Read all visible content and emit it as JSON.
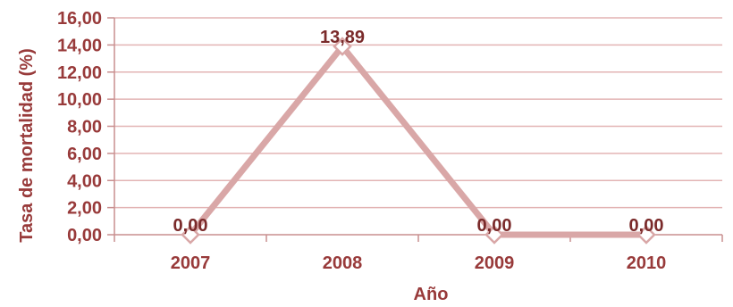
{
  "chart_data": {
    "type": "line",
    "categories": [
      "2007",
      "2008",
      "2009",
      "2010"
    ],
    "series": [
      {
        "values": [
          0.0,
          13.89,
          0.0,
          0.0
        ]
      }
    ],
    "data_labels": [
      "0,00",
      "13,89",
      "0,00",
      "0,00"
    ],
    "y_ticks": [
      0,
      2,
      4,
      6,
      8,
      10,
      12,
      14,
      16
    ],
    "y_tick_labels": [
      "0,00",
      "2,00",
      "4,00",
      "6,00",
      "8,00",
      "10,00",
      "12,00",
      "14,00",
      "16,00"
    ],
    "ylim": [
      0,
      16
    ],
    "xlabel": "Año",
    "ylabel": "Tasa de mortalidad (%)",
    "grid": true,
    "marker": "diamond-open",
    "colors": {
      "line": "#d9a7a7",
      "marker": "#d9a7a7",
      "grid": "#e3b4b4",
      "axis": "#c98f8f",
      "text": "#983a3a",
      "data_label": "#7a2a2a"
    }
  }
}
